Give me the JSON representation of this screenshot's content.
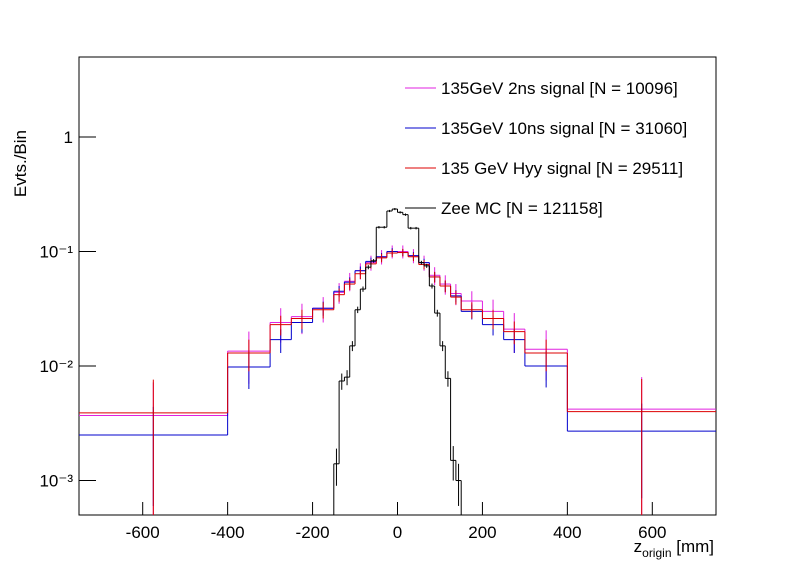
{
  "chart_data": {
    "type": "histogram",
    "y_label": "Evts./Bin",
    "x_label": {
      "text": "z",
      "subscript": "origin",
      "suffix": " [mm]"
    },
    "xlim": [
      -750,
      750
    ],
    "xticks": [
      -600,
      -400,
      -200,
      0,
      200,
      400,
      600
    ],
    "ylim": [
      0.0005,
      5
    ],
    "yticks": [
      {
        "value": 0.001,
        "label": "10⁻³"
      },
      {
        "value": 0.01,
        "label": "10⁻²"
      },
      {
        "value": 0.1,
        "label": "10⁻¹"
      },
      1
    ],
    "log_y": true,
    "legend": "top-right",
    "series": [
      {
        "name": "135GeV 2ns signal [N = 10096]",
        "color": "#e020e0",
        "bins": [
          -750,
          -400,
          -300,
          -250,
          -200,
          -150,
          -125,
          -100,
          -75,
          -50,
          -25,
          0,
          25,
          50,
          75,
          100,
          125,
          150,
          200,
          250,
          300,
          400,
          750
        ],
        "values": [
          0.0037,
          0.0135,
          0.024,
          0.027,
          0.032,
          0.044,
          0.055,
          0.068,
          0.08,
          0.09,
          0.1,
          0.1,
          0.092,
          0.08,
          0.062,
          0.052,
          0.043,
          0.037,
          0.03,
          0.021,
          0.014,
          0.0042
        ],
        "errors": [
          0.0035,
          0.0065,
          0.008,
          0.008,
          0.008,
          0.009,
          0.01,
          0.011,
          0.012,
          0.013,
          0.013,
          0.013,
          0.013,
          0.012,
          0.011,
          0.01,
          0.009,
          0.008,
          0.008,
          0.008,
          0.0065,
          0.0038
        ]
      },
      {
        "name": "135GeV 10ns signal [N = 31060]",
        "color": "#0000cc",
        "bins": [
          -750,
          -400,
          -300,
          -250,
          -200,
          -150,
          -125,
          -100,
          -75,
          -50,
          -25,
          0,
          25,
          50,
          75,
          100,
          125,
          150,
          200,
          250,
          300,
          400,
          750
        ],
        "values": [
          0.0025,
          0.0098,
          0.017,
          0.024,
          0.032,
          0.045,
          0.054,
          0.068,
          0.082,
          0.09,
          0.1,
          0.098,
          0.092,
          0.08,
          0.06,
          0.05,
          0.041,
          0.03,
          0.023,
          0.017,
          0.01,
          0.0027
        ],
        "errors": [
          0.0019,
          0.0035,
          0.004,
          0.0045,
          0.0045,
          0.005,
          0.0055,
          0.006,
          0.0065,
          0.007,
          0.007,
          0.007,
          0.007,
          0.0065,
          0.006,
          0.0055,
          0.005,
          0.0045,
          0.0045,
          0.004,
          0.0035,
          0.002
        ]
      },
      {
        "name": "135 GeV Hyy signal [N = 29511]",
        "color": "#dd0000",
        "bins": [
          -750,
          -400,
          -300,
          -250,
          -200,
          -150,
          -125,
          -100,
          -75,
          -50,
          -25,
          0,
          25,
          50,
          75,
          100,
          125,
          150,
          200,
          250,
          300,
          400,
          750
        ],
        "values": [
          0.0039,
          0.013,
          0.023,
          0.026,
          0.031,
          0.042,
          0.052,
          0.064,
          0.078,
          0.088,
          0.097,
          0.098,
          0.09,
          0.077,
          0.06,
          0.05,
          0.04,
          0.031,
          0.026,
          0.02,
          0.013,
          0.004
        ],
        "errors": [
          0.0037,
          0.004,
          0.0045,
          0.005,
          0.005,
          0.0055,
          0.006,
          0.0065,
          0.007,
          0.0075,
          0.0075,
          0.0075,
          0.0075,
          0.007,
          0.0065,
          0.006,
          0.0055,
          0.005,
          0.005,
          0.0045,
          0.004,
          0.0037
        ]
      },
      {
        "name": "Zee MC [N = 121158]",
        "color": "#000000",
        "bins": [
          -150,
          -137.5,
          -125,
          -112.5,
          -100,
          -87.5,
          -75,
          -62.5,
          -50,
          -37.5,
          -25,
          -12.5,
          0,
          12.5,
          25,
          37.5,
          50,
          62.5,
          75,
          87.5,
          100,
          112.5,
          125,
          137.5,
          150
        ],
        "values": [
          0.0014,
          0.0074,
          0.008,
          0.015,
          0.031,
          0.047,
          0.073,
          0.083,
          0.163,
          0.163,
          0.226,
          0.235,
          0.22,
          0.21,
          0.16,
          0.16,
          0.08,
          0.075,
          0.05,
          0.029,
          0.015,
          0.0078,
          0.0015,
          0.001
        ],
        "errors": [
          0.0005,
          0.0012,
          0.0012,
          0.0015,
          0.002,
          0.0025,
          0.003,
          0.003,
          0.004,
          0.004,
          0.005,
          0.005,
          0.005,
          0.005,
          0.004,
          0.004,
          0.003,
          0.003,
          0.0025,
          0.002,
          0.0015,
          0.0012,
          0.0005,
          0.0004
        ]
      }
    ]
  }
}
